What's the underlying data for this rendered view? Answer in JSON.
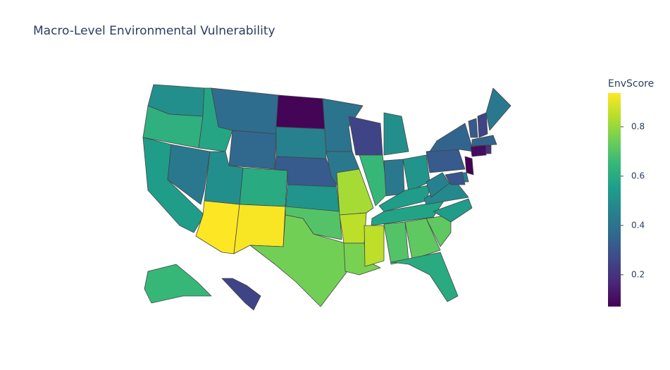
{
  "chart_data": {
    "type": "choropleth",
    "title": "Macro-Level Environmental Vulnerability",
    "colorbar_title": "EnvScore",
    "colorscale": "Viridis",
    "zlim": [
      0.071,
      0.937
    ],
    "zticks": [
      0.2,
      0.4,
      0.6,
      0.8
    ],
    "locations": [
      "WA",
      "OR",
      "CA",
      "NV",
      "ID",
      "MT",
      "WY",
      "UT",
      "AZ",
      "CO",
      "NM",
      "ND",
      "SD",
      "NE",
      "KS",
      "OK",
      "TX",
      "MN",
      "IA",
      "MO",
      "AR",
      "LA",
      "WI",
      "IL",
      "MI",
      "IN",
      "OH",
      "KY",
      "TN",
      "MS",
      "AL",
      "GA",
      "FL",
      "SC",
      "NC",
      "VA",
      "WV",
      "PA",
      "NY",
      "VT",
      "NH",
      "ME",
      "MA",
      "CT",
      "RI",
      "NJ",
      "DE",
      "MD",
      "AK",
      "HI"
    ],
    "values": [
      0.5,
      0.62,
      0.55,
      0.42,
      0.58,
      0.38,
      0.36,
      0.5,
      0.937,
      0.6,
      0.93,
      0.08,
      0.45,
      0.32,
      0.52,
      0.7,
      0.75,
      0.4,
      0.42,
      0.82,
      0.85,
      0.76,
      0.25,
      0.65,
      0.5,
      0.42,
      0.52,
      0.55,
      0.57,
      0.85,
      0.7,
      0.72,
      0.6,
      0.72,
      0.55,
      0.48,
      0.45,
      0.32,
      0.35,
      0.32,
      0.25,
      0.42,
      0.35,
      0.1,
      0.2,
      0.071,
      0.45,
      0.3,
      0.65,
      0.25
    ]
  }
}
